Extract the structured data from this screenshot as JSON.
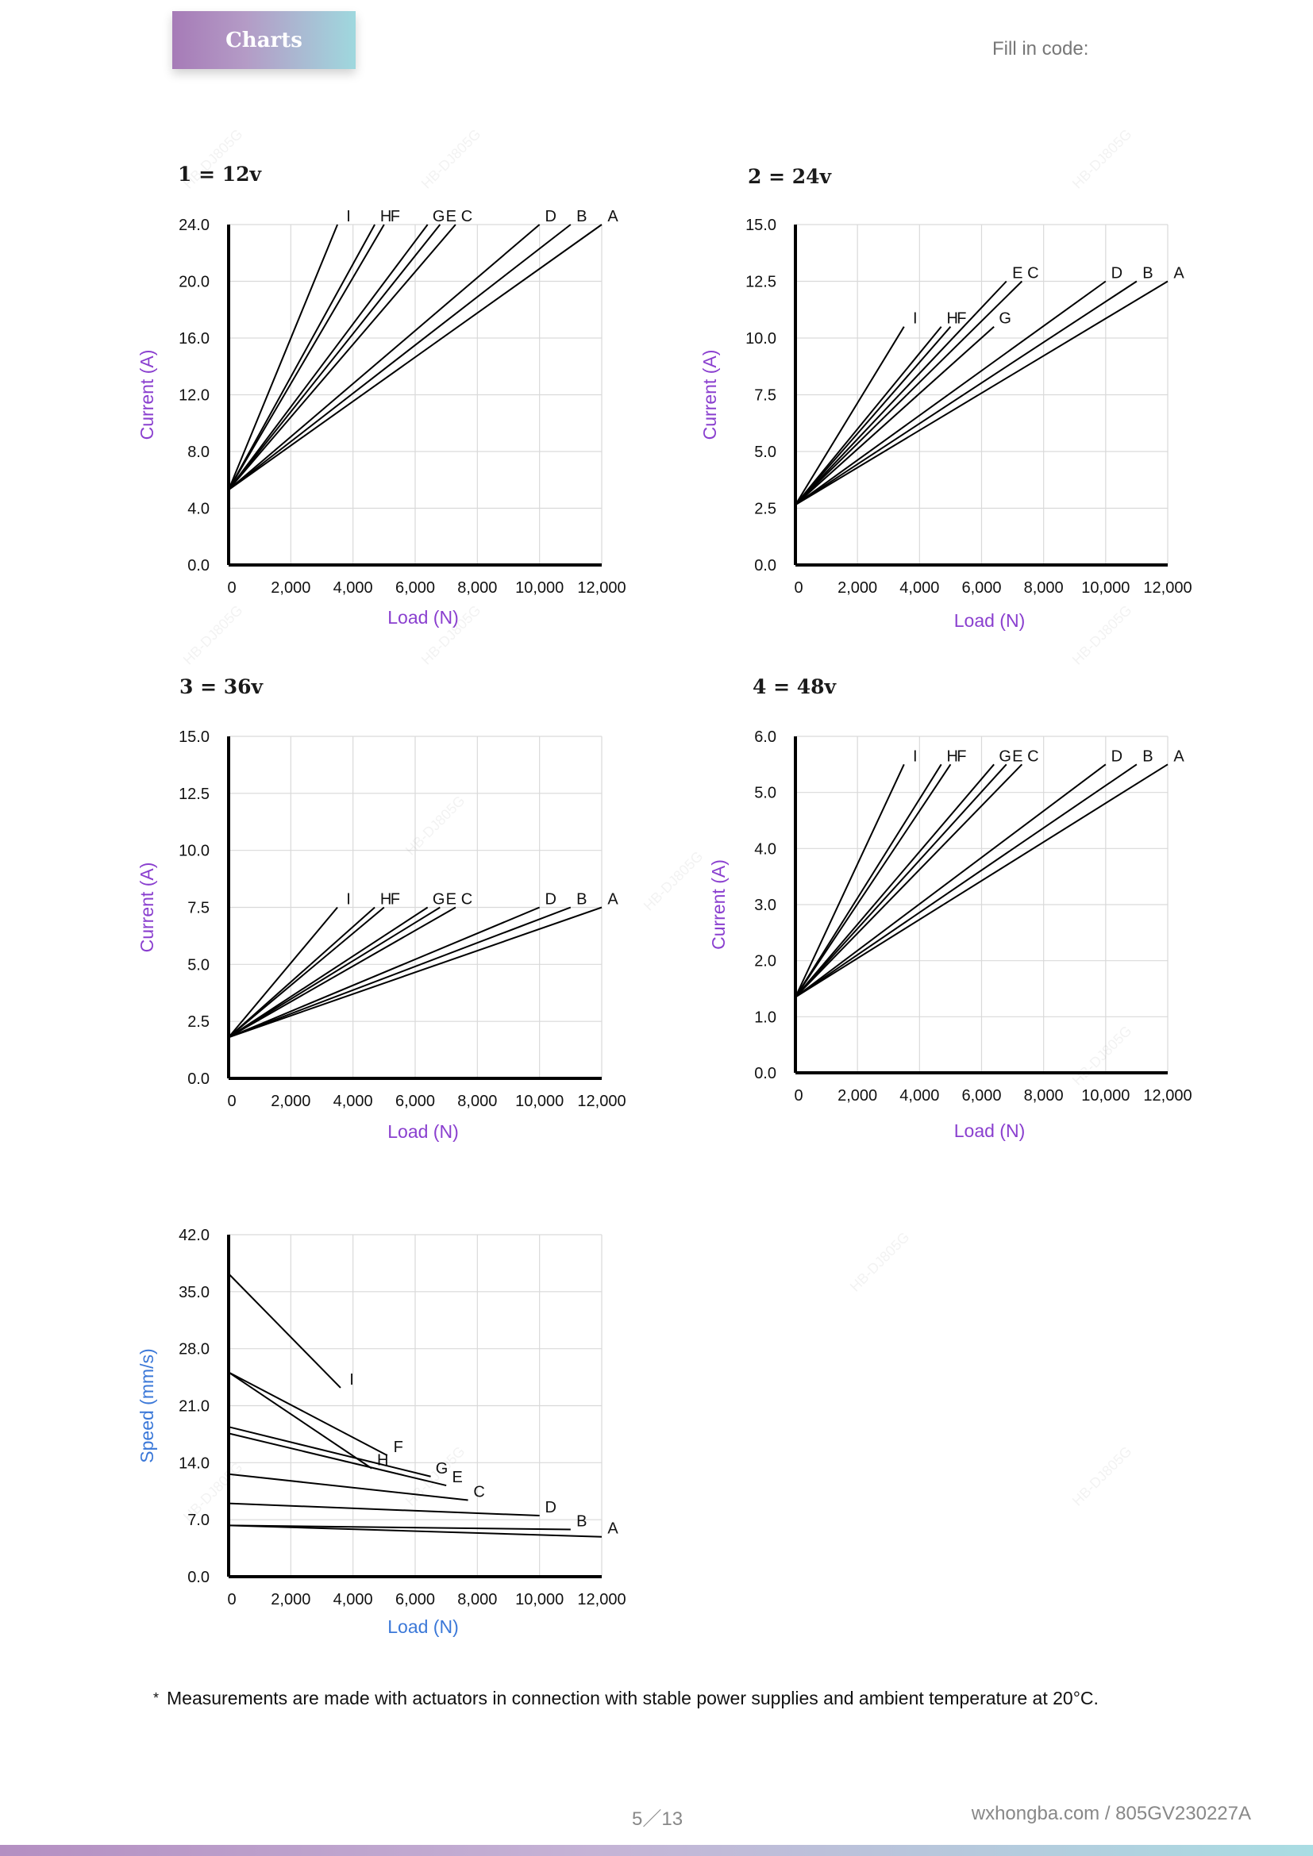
{
  "header": {
    "tab_label": "Charts",
    "fill_code_label": "Fill in code:"
  },
  "footnote": {
    "star": "*",
    "text": "Measurements are made with actuators in connection with stable power supplies and ambient temperature at 20°C."
  },
  "footer": {
    "page": "5／13",
    "site": "wxhongba.com / 805GV230227A"
  },
  "watermark_text": "HB-DJ805G",
  "colors": {
    "axis_label": "#8a3fcf",
    "speed_label": "#3b78d8",
    "grid": "#d9d9d9",
    "line": "#000000"
  },
  "chart_data": [
    {
      "type": "line",
      "title": "1 = 12v",
      "xlabel": "Load (N)",
      "ylabel": "Current (A)",
      "xlim": [
        0,
        12000
      ],
      "ylim": [
        0,
        24
      ],
      "xticks": [
        "0",
        "2,000",
        "4,000",
        "6,000",
        "8,000",
        "10,000",
        "12,000"
      ],
      "yticks": [
        "0.0",
        "4.0",
        "8.0",
        "12.0",
        "16.0",
        "20.0",
        "24.0"
      ],
      "series": [
        {
          "name": "I",
          "x": [
            0,
            3500
          ],
          "y": [
            5.3,
            24
          ]
        },
        {
          "name": "H",
          "x": [
            0,
            4700
          ],
          "y": [
            5.3,
            24
          ]
        },
        {
          "name": "F",
          "x": [
            0,
            5000
          ],
          "y": [
            5.3,
            24
          ]
        },
        {
          "name": "G",
          "x": [
            0,
            6400
          ],
          "y": [
            5.3,
            24
          ]
        },
        {
          "name": "E",
          "x": [
            0,
            6800
          ],
          "y": [
            5.3,
            24
          ]
        },
        {
          "name": "C",
          "x": [
            0,
            7300
          ],
          "y": [
            5.3,
            24
          ]
        },
        {
          "name": "D",
          "x": [
            0,
            10000
          ],
          "y": [
            5.3,
            24
          ]
        },
        {
          "name": "B",
          "x": [
            0,
            11000
          ],
          "y": [
            5.3,
            24
          ]
        },
        {
          "name": "A",
          "x": [
            0,
            12000
          ],
          "y": [
            5.3,
            24
          ]
        }
      ]
    },
    {
      "type": "line",
      "title": "2 = 24v",
      "xlabel": "Load (N)",
      "ylabel": "Current (A)",
      "xlim": [
        0,
        12000
      ],
      "ylim": [
        0,
        15
      ],
      "xticks": [
        "0",
        "2,000",
        "4,000",
        "6,000",
        "8,000",
        "10,000",
        "12,000"
      ],
      "yticks": [
        "0.0",
        "2.5",
        "5.0",
        "7.5",
        "10.0",
        "12.5",
        "15.0"
      ],
      "series": [
        {
          "name": "I",
          "x": [
            0,
            3500
          ],
          "y": [
            2.65,
            10.5
          ]
        },
        {
          "name": "H",
          "x": [
            0,
            4700
          ],
          "y": [
            2.65,
            10.5
          ]
        },
        {
          "name": "F",
          "x": [
            0,
            5000
          ],
          "y": [
            2.65,
            10.5
          ]
        },
        {
          "name": "G",
          "x": [
            0,
            6400
          ],
          "y": [
            2.65,
            10.5
          ]
        },
        {
          "name": "E",
          "x": [
            0,
            6800
          ],
          "y": [
            2.65,
            12.5
          ]
        },
        {
          "name": "C",
          "x": [
            0,
            7300
          ],
          "y": [
            2.65,
            12.5
          ]
        },
        {
          "name": "D",
          "x": [
            0,
            10000
          ],
          "y": [
            2.65,
            12.5
          ]
        },
        {
          "name": "B",
          "x": [
            0,
            11000
          ],
          "y": [
            2.65,
            12.5
          ]
        },
        {
          "name": "A",
          "x": [
            0,
            12000
          ],
          "y": [
            2.65,
            12.5
          ]
        }
      ]
    },
    {
      "type": "line",
      "title": "3 = 36v",
      "xlabel": "Load (N)",
      "ylabel": "Current (A)",
      "xlim": [
        0,
        12000
      ],
      "ylim": [
        0,
        15
      ],
      "xticks": [
        "0",
        "2,000",
        "4,000",
        "6,000",
        "8,000",
        "10,000",
        "12,000"
      ],
      "yticks": [
        "0.0",
        "2.5",
        "5.0",
        "7.5",
        "10.0",
        "12.5",
        "15.0"
      ],
      "series": [
        {
          "name": "I",
          "x": [
            0,
            3500
          ],
          "y": [
            1.8,
            7.5
          ]
        },
        {
          "name": "H",
          "x": [
            0,
            4700
          ],
          "y": [
            1.8,
            7.5
          ]
        },
        {
          "name": "F",
          "x": [
            0,
            5000
          ],
          "y": [
            1.8,
            7.5
          ]
        },
        {
          "name": "G",
          "x": [
            0,
            6400
          ],
          "y": [
            1.8,
            7.5
          ]
        },
        {
          "name": "E",
          "x": [
            0,
            6800
          ],
          "y": [
            1.8,
            7.5
          ]
        },
        {
          "name": "C",
          "x": [
            0,
            7300
          ],
          "y": [
            1.8,
            7.5
          ]
        },
        {
          "name": "D",
          "x": [
            0,
            10000
          ],
          "y": [
            1.8,
            7.5
          ]
        },
        {
          "name": "B",
          "x": [
            0,
            11000
          ],
          "y": [
            1.8,
            7.5
          ]
        },
        {
          "name": "A",
          "x": [
            0,
            12000
          ],
          "y": [
            1.8,
            7.5
          ]
        }
      ]
    },
    {
      "type": "line",
      "title": "4 = 48v",
      "xlabel": "Load (N)",
      "ylabel": "Current (A)",
      "xlim": [
        0,
        12000
      ],
      "ylim": [
        0,
        6
      ],
      "xticks": [
        "0",
        "2,000",
        "4,000",
        "6,000",
        "8,000",
        "10,000",
        "12,000"
      ],
      "yticks": [
        "0.0",
        "1.0",
        "2.0",
        "3.0",
        "4.0",
        "5.0",
        "6.0"
      ],
      "series": [
        {
          "name": "I",
          "x": [
            0,
            3500
          ],
          "y": [
            1.35,
            5.5
          ]
        },
        {
          "name": "H",
          "x": [
            0,
            4700
          ],
          "y": [
            1.35,
            5.5
          ]
        },
        {
          "name": "F",
          "x": [
            0,
            5000
          ],
          "y": [
            1.35,
            5.5
          ]
        },
        {
          "name": "G",
          "x": [
            0,
            6400
          ],
          "y": [
            1.35,
            5.5
          ]
        },
        {
          "name": "E",
          "x": [
            0,
            6800
          ],
          "y": [
            1.35,
            5.5
          ]
        },
        {
          "name": "C",
          "x": [
            0,
            7300
          ],
          "y": [
            1.35,
            5.5
          ]
        },
        {
          "name": "D",
          "x": [
            0,
            10000
          ],
          "y": [
            1.35,
            5.5
          ]
        },
        {
          "name": "B",
          "x": [
            0,
            11000
          ],
          "y": [
            1.35,
            5.5
          ]
        },
        {
          "name": "A",
          "x": [
            0,
            12000
          ],
          "y": [
            1.35,
            5.5
          ]
        }
      ]
    },
    {
      "type": "line",
      "title": "",
      "xlabel": "Load (N)",
      "ylabel": "Speed (mm/s)",
      "xlim": [
        0,
        12000
      ],
      "ylim": [
        0,
        42
      ],
      "xticks": [
        "0",
        "2,000",
        "4,000",
        "6,000",
        "8,000",
        "10,000",
        "12,000"
      ],
      "yticks": [
        "0.0",
        "7.0",
        "14.0",
        "21.0",
        "28.0",
        "35.0",
        "42.0"
      ],
      "series": [
        {
          "name": "I",
          "x": [
            0,
            3600
          ],
          "y": [
            37.2,
            23.2
          ]
        },
        {
          "name": "H",
          "x": [
            0,
            4600
          ],
          "y": [
            25.1,
            13.3
          ]
        },
        {
          "name": "F",
          "x": [
            0,
            5100
          ],
          "y": [
            25.1,
            14.9
          ]
        },
        {
          "name": "G",
          "x": [
            0,
            6500
          ],
          "y": [
            18.4,
            12.3
          ]
        },
        {
          "name": "E",
          "x": [
            0,
            7000
          ],
          "y": [
            17.6,
            11.2
          ]
        },
        {
          "name": "C",
          "x": [
            0,
            7700
          ],
          "y": [
            12.6,
            9.4
          ]
        },
        {
          "name": "D",
          "x": [
            0,
            10000
          ],
          "y": [
            9.0,
            7.5
          ]
        },
        {
          "name": "B",
          "x": [
            0,
            11000
          ],
          "y": [
            6.3,
            5.8
          ]
        },
        {
          "name": "A",
          "x": [
            0,
            12000
          ],
          "y": [
            6.3,
            4.9
          ]
        }
      ]
    }
  ]
}
